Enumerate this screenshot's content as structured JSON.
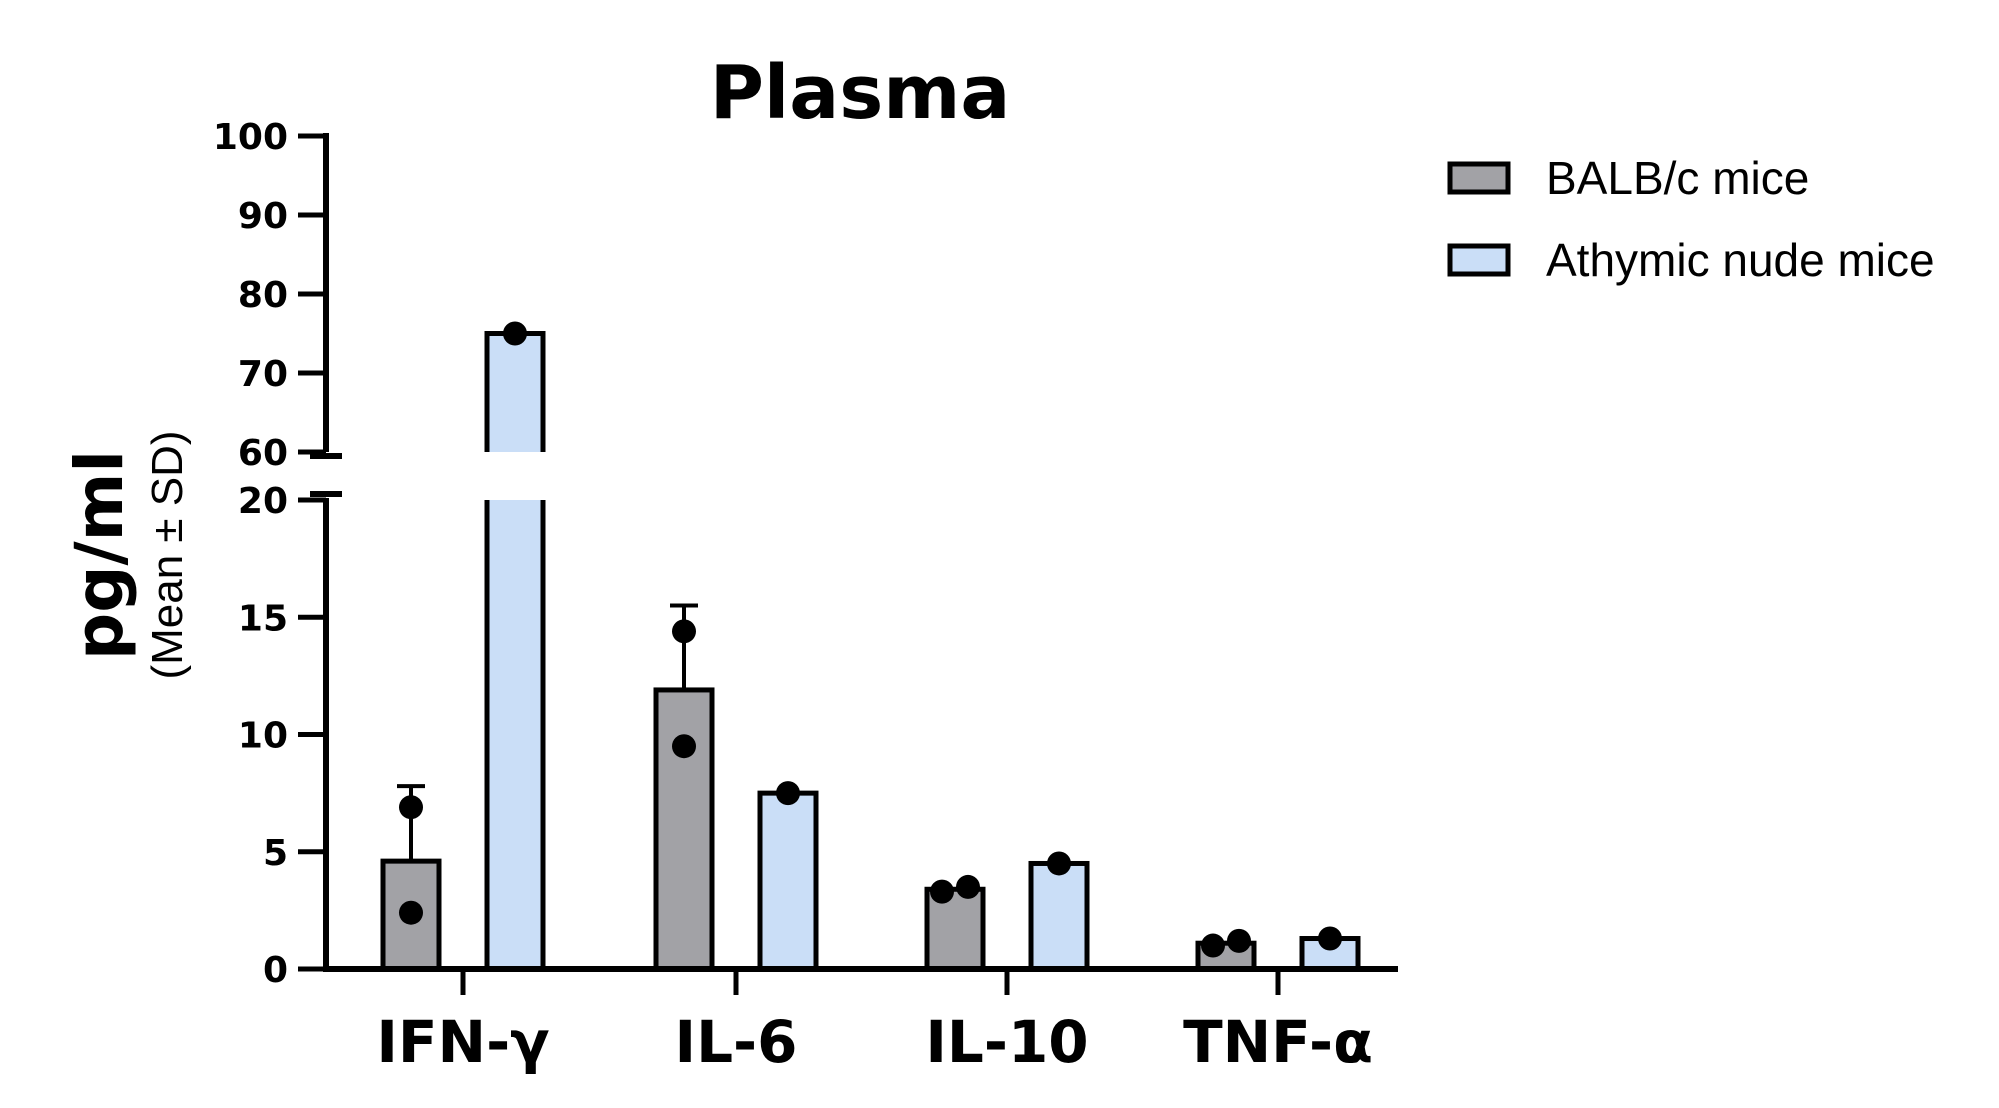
{
  "chart_data": {
    "type": "bar",
    "title": "Plasma",
    "ylabel": "pg/ml",
    "ylabel_sub": "(Mean ± SD)",
    "xlabel": "",
    "categories": [
      "IFN-γ",
      "IL-6",
      "IL-10",
      "TNF-α"
    ],
    "y_axis_break": {
      "lower_range": [
        0,
        20
      ],
      "upper_range": [
        60,
        100
      ]
    },
    "yticks_lower": [
      "0",
      "5",
      "10",
      "15",
      "20"
    ],
    "yticks_upper": [
      "60",
      "70",
      "80",
      "90",
      "100"
    ],
    "legend_position": "top-right",
    "grid": false,
    "series": [
      {
        "name": "BALB/c mice",
        "color": "#a2a2a6",
        "values": [
          4.6,
          11.9,
          3.4,
          1.1
        ],
        "sd": [
          3.2,
          3.6,
          0.0,
          0.0
        ],
        "points": [
          [
            6.9,
            2.4
          ],
          [
            14.4,
            9.5
          ],
          [
            3.3,
            3.5
          ],
          [
            1.0,
            1.2
          ]
        ]
      },
      {
        "name": "Athymic nude mice",
        "color": "#cadef7",
        "values": [
          75.0,
          7.5,
          4.5,
          1.3
        ],
        "sd": [
          0,
          0,
          0,
          0
        ],
        "points": [
          [
            75.0
          ],
          [
            7.5
          ],
          [
            4.5
          ],
          [
            1.3
          ]
        ]
      }
    ]
  }
}
